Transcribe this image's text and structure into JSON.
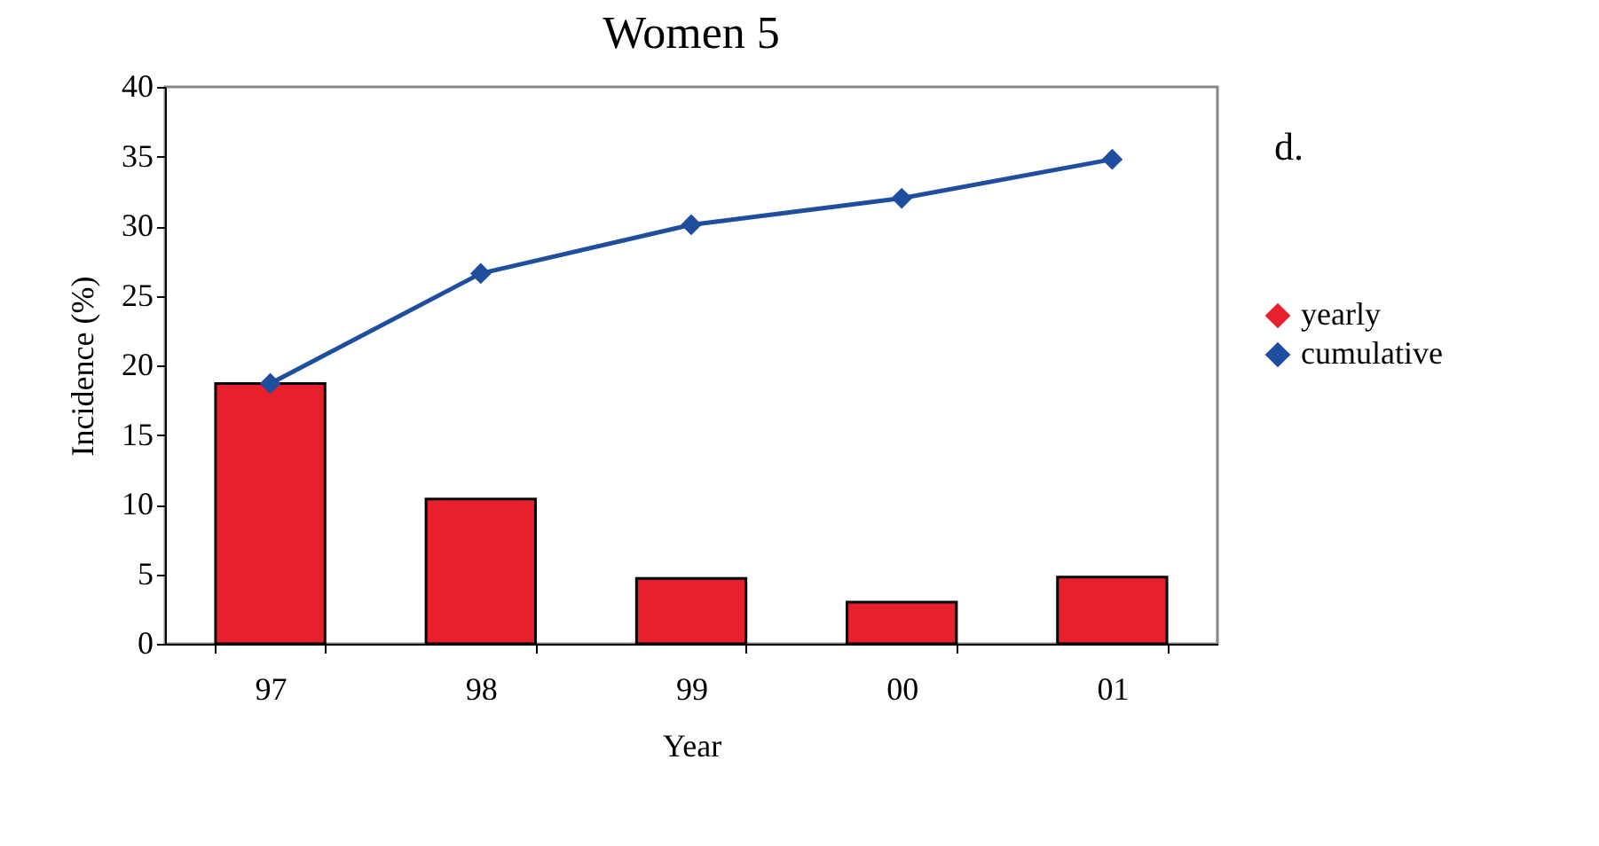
{
  "chart_data": {
    "type": "bar",
    "title": "Women 5",
    "xlabel": "Year",
    "ylabel": "Incidence (%)",
    "categories": [
      "97",
      "98",
      "99",
      "00",
      "01"
    ],
    "series": [
      {
        "name": "yearly",
        "color": "#e8202e",
        "values": [
          18.7,
          10.4,
          4.7,
          3.0,
          4.8
        ]
      },
      {
        "name": "cumulative",
        "type": "line",
        "color": "#1f4e9e",
        "marker": "diamond",
        "values": [
          18.7,
          26.6,
          30.1,
          32.0,
          34.8
        ]
      }
    ],
    "ylim": [
      0,
      40
    ],
    "yticks": [
      0,
      5,
      10,
      15,
      20,
      25,
      30,
      35,
      40
    ],
    "grid": false,
    "legend": "right",
    "annotations": [
      "d."
    ]
  }
}
